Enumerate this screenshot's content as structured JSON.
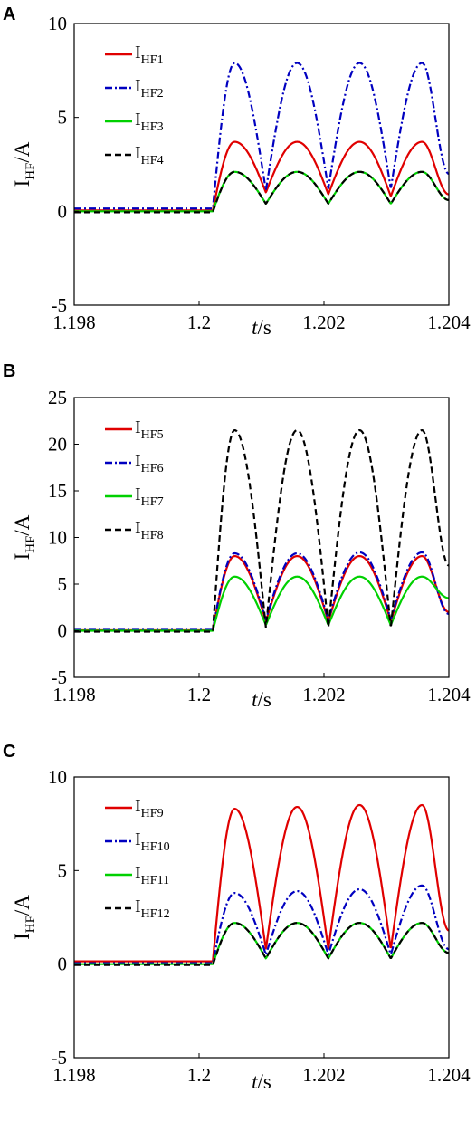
{
  "chart_data": [
    {
      "panel": "A",
      "type": "line",
      "xlabel": "t/s",
      "xlabel_italic": "t",
      "xlabel_rest": "/s",
      "ylabel_main": "I",
      "ylabel_sub": "HF",
      "ylabel_rest": "/A",
      "xlim": [
        1.198,
        1.204
      ],
      "ylim": [
        -5,
        10
      ],
      "xticks": [
        "1.198",
        "1.2",
        "1.202",
        "1.204"
      ],
      "xtick_values": [
        1.198,
        1.2,
        1.202,
        1.204
      ],
      "yticks": [
        "10",
        "5",
        "0",
        "-5"
      ],
      "ytick_values": [
        10,
        5,
        0,
        -5
      ],
      "grid": false,
      "legend_position": "top-left",
      "series": [
        {
          "name": "IHF1",
          "main": "I",
          "sub": "HF1",
          "color": "#e00000",
          "dash": "",
          "pre": 0.05,
          "peaks": [
            3.7,
            3.7,
            3.7,
            3.7
          ],
          "troughs": [
            1.0,
            0.9,
            0.8,
            0.8
          ],
          "end": 0.9
        },
        {
          "name": "IHF2",
          "main": "I",
          "sub": "HF2",
          "color": "#0000c0",
          "dash": "8,3,2,3",
          "pre": 0.15,
          "peaks": [
            7.9,
            7.9,
            7.9,
            7.9
          ],
          "troughs": [
            1.1,
            1.2,
            1.2,
            1.2
          ],
          "end": 2.0
        },
        {
          "name": "IHF3",
          "main": "I",
          "sub": "HF3",
          "color": "#00d000",
          "dash": "",
          "pre": 0.0,
          "peaks": [
            2.1,
            2.1,
            2.1,
            2.1
          ],
          "troughs": [
            0.4,
            0.4,
            0.4,
            0.4
          ],
          "end": 0.6
        },
        {
          "name": "IHF4",
          "main": "I",
          "sub": "HF4",
          "color": "#000000",
          "dash": "7,4",
          "pre": -0.05,
          "peaks": [
            2.1,
            2.1,
            2.1,
            2.1
          ],
          "troughs": [
            0.4,
            0.4,
            0.4,
            0.4
          ],
          "end": 0.6
        }
      ]
    },
    {
      "panel": "B",
      "type": "line",
      "xlabel": "t/s",
      "xlabel_italic": "t",
      "xlabel_rest": "/s",
      "ylabel_main": "I",
      "ylabel_sub": "HF",
      "ylabel_rest": "/A",
      "xlim": [
        1.198,
        1.204
      ],
      "ylim": [
        -5,
        25
      ],
      "xticks": [
        "1.198",
        "1.2",
        "1.202",
        "1.204"
      ],
      "xtick_values": [
        1.198,
        1.2,
        1.202,
        1.204
      ],
      "yticks": [
        "25",
        "20",
        "15",
        "10",
        "5",
        "0",
        "-5"
      ],
      "ytick_values": [
        25,
        20,
        15,
        10,
        5,
        0,
        -5
      ],
      "grid": false,
      "legend_position": "top-left",
      "series": [
        {
          "name": "IHF5",
          "main": "I",
          "sub": "HF5",
          "color": "#e00000",
          "dash": "",
          "pre": 0.05,
          "peaks": [
            8.0,
            8.0,
            8.0,
            8.0
          ],
          "troughs": [
            1.0,
            1.0,
            1.0,
            1.0
          ],
          "end": 2.0
        },
        {
          "name": "IHF6",
          "main": "I",
          "sub": "HF6",
          "color": "#0000c0",
          "dash": "8,3,2,3",
          "pre": 0.1,
          "peaks": [
            8.3,
            8.3,
            8.4,
            8.4
          ],
          "troughs": [
            1.2,
            1.2,
            1.2,
            1.2
          ],
          "end": 1.8
        },
        {
          "name": "IHF7",
          "main": "I",
          "sub": "HF7",
          "color": "#00d000",
          "dash": "",
          "pre": 0.0,
          "peaks": [
            5.8,
            5.8,
            5.8,
            5.8
          ],
          "troughs": [
            0.6,
            0.6,
            0.6,
            0.6
          ],
          "end": 3.5
        },
        {
          "name": "IHF8",
          "main": "I",
          "sub": "HF8",
          "color": "#000000",
          "dash": "7,4",
          "pre": -0.1,
          "peaks": [
            21.5,
            21.5,
            21.5,
            21.5
          ],
          "troughs": [
            0.3,
            0.3,
            0.3,
            0.3
          ],
          "end": 7.0
        }
      ]
    },
    {
      "panel": "C",
      "type": "line",
      "xlabel": "t/s",
      "xlabel_italic": "t",
      "xlabel_rest": "/s",
      "ylabel_main": "I",
      "ylabel_sub": "HF",
      "ylabel_rest": "/A",
      "xlim": [
        1.198,
        1.204
      ],
      "ylim": [
        -5,
        10
      ],
      "xticks": [
        "1.198",
        "1.2",
        "1.202",
        "1.204"
      ],
      "xtick_values": [
        1.198,
        1.2,
        1.202,
        1.204
      ],
      "yticks": [
        "10",
        "5",
        "0",
        "-5"
      ],
      "ytick_values": [
        10,
        5,
        0,
        -5
      ],
      "grid": false,
      "legend_position": "top-left",
      "series": [
        {
          "name": "IHF9",
          "main": "I",
          "sub": "HF9",
          "color": "#e00000",
          "dash": "",
          "pre": 0.15,
          "peaks": [
            8.3,
            8.4,
            8.5,
            8.5
          ],
          "troughs": [
            0.8,
            0.8,
            0.8,
            0.8
          ],
          "end": 1.8
        },
        {
          "name": "IHF10",
          "main": "I",
          "sub": "HF10",
          "color": "#0000c0",
          "dash": "8,3,2,3",
          "pre": 0.05,
          "peaks": [
            3.8,
            3.9,
            4.0,
            4.2
          ],
          "troughs": [
            0.5,
            0.5,
            0.5,
            0.6
          ],
          "end": 0.8
        },
        {
          "name": "IHF11",
          "main": "I",
          "sub": "HF11",
          "color": "#00d000",
          "dash": "",
          "pre": 0.0,
          "peaks": [
            2.2,
            2.2,
            2.2,
            2.2
          ],
          "troughs": [
            0.3,
            0.3,
            0.3,
            0.3
          ],
          "end": 0.6
        },
        {
          "name": "IHF12",
          "main": "I",
          "sub": "HF12",
          "color": "#000000",
          "dash": "7,4",
          "pre": -0.05,
          "peaks": [
            2.2,
            2.2,
            2.2,
            2.2
          ],
          "troughs": [
            0.3,
            0.3,
            0.3,
            0.3
          ],
          "end": 0.6
        }
      ]
    }
  ]
}
